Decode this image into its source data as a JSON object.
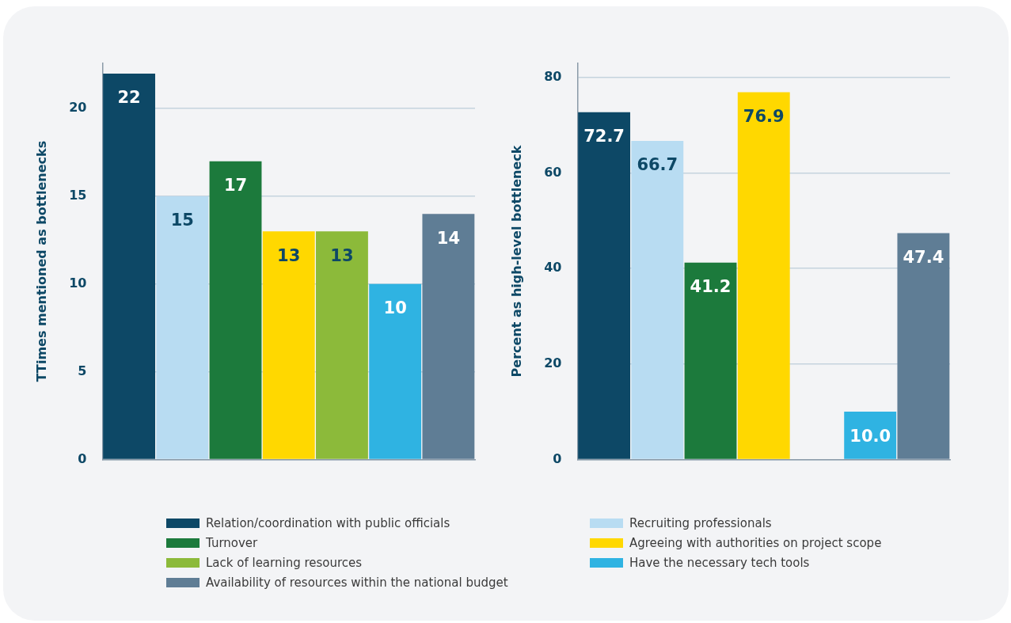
{
  "chart_data": [
    {
      "type": "bar",
      "categories": [
        null
      ],
      "ylabel": "TTimes mentioned as bottlenecks",
      "ylim": [
        0,
        22.6
      ],
      "yticks": [
        0,
        5,
        10,
        15,
        20
      ],
      "grid": "y",
      "legend": "bottom",
      "data_labels": true,
      "series": [
        {
          "name": "Relation/coordination with public officials",
          "color": "#0d4866",
          "values": [
            22
          ]
        },
        {
          "name": "Recruiting professionals",
          "color": "#b8dcf2",
          "values": [
            15
          ]
        },
        {
          "name": "Turnover",
          "color": "#1c7a3c",
          "values": [
            17
          ]
        },
        {
          "name": "Agreeing with authorities on project scope",
          "color": "#ffd800",
          "values": [
            13
          ]
        },
        {
          "name": "Lack of learning resources",
          "color": "#8cba3a",
          "values": [
            13
          ]
        },
        {
          "name": "Have the necessary tech tools",
          "color": "#2fb3e2",
          "values": [
            10
          ]
        },
        {
          "name": "Availability of resources within the national budget",
          "color": "#5f7d95",
          "values": [
            14
          ]
        }
      ]
    },
    {
      "type": "bar",
      "categories": [
        null
      ],
      "ylabel": "Percent as high-level bottleneck",
      "ylim": [
        0,
        83
      ],
      "yticks": [
        0,
        20,
        40,
        60,
        80
      ],
      "grid": "y",
      "series": [
        {
          "color": "#0d4866",
          "values": [
            72.7
          ],
          "value_labels": [
            "72.7"
          ]
        },
        {
          "color": "#b8dcf2",
          "values": [
            66.7
          ],
          "value_labels": [
            "66.7"
          ]
        },
        {
          "color": "#1c7a3c",
          "values": [
            41.2
          ],
          "value_labels": [
            "41.2"
          ]
        },
        {
          "color": "#ffd800",
          "values": [
            76.9
          ],
          "value_labels": [
            "76.9"
          ]
        },
        {
          "color": "#8cba3a",
          "values": [
            null
          ],
          "value_labels": [
            null
          ]
        },
        {
          "color": "#2fb3e2",
          "values": [
            10.0
          ],
          "value_labels": [
            "10.0"
          ]
        },
        {
          "color": "#5f7d95",
          "values": [
            47.4
          ],
          "value_labels": [
            "47.4"
          ]
        }
      ]
    }
  ]
}
